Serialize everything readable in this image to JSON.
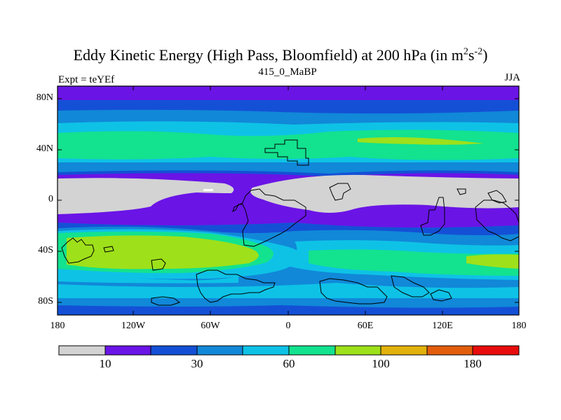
{
  "title": {
    "main": "Eddy Kinetic Energy (High Pass, Bloomfield) at 200 hPa (in m",
    "sup1": "2",
    "s": "s",
    "sup2": "-2",
    "close": ")"
  },
  "subtitle": "415_0_MaBP",
  "experiment_label": "Expt = teYEf",
  "season_label": "JJA",
  "map": {
    "projection": "cylindrical equidistant",
    "lat_range": [
      -90,
      90
    ],
    "lon_range": [
      -180,
      180
    ],
    "lat_ticks": [
      "80N",
      "40N",
      "0",
      "40S",
      "80S"
    ],
    "lon_ticks": [
      "180",
      "120W",
      "60W",
      "0",
      "60E",
      "120E",
      "180"
    ],
    "field_bands_by_latitude_top_to_bottom": [
      {
        "lat": "90N-80N",
        "level": "10-20"
      },
      {
        "lat": "80N-70N",
        "level": "20-30"
      },
      {
        "lat": "65N-55N",
        "level": "30-45"
      },
      {
        "lat": "55N-35N",
        "level": "60-80"
      },
      {
        "lat": "47N",
        "level": "80-100 (Pacific jet core)"
      },
      {
        "lat": "20N-5S",
        "level": "<10 (tropics)"
      },
      {
        "lat": "20S-35S",
        "level": "45-60"
      },
      {
        "lat": "40S-55S",
        "level": "80-100 (Southern Hemisphere storm track)"
      },
      {
        "lat": "60S-80S",
        "level": "30-60"
      }
    ]
  },
  "colorbar": {
    "colors": [
      "#d3d3d3",
      "#6a14e6",
      "#1450d6",
      "#1188d8",
      "#0ec2e6",
      "#13e28f",
      "#9ee01a",
      "#e2b20c",
      "#e35e0c",
      "#e80c0c"
    ],
    "labels": [
      "10",
      "30",
      "60",
      "100",
      "180"
    ]
  }
}
